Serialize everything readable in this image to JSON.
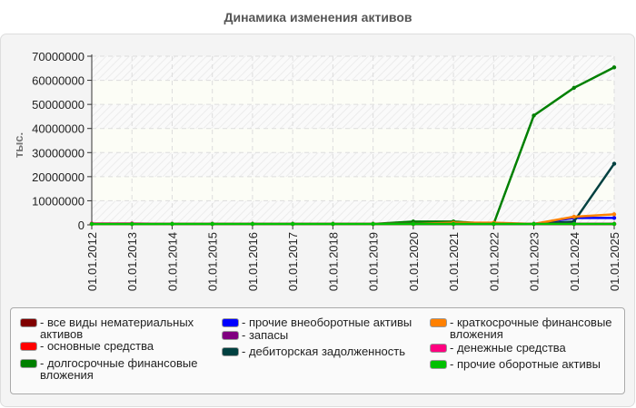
{
  "title": "Динамика изменения активов",
  "chart_data": {
    "type": "line",
    "title": "Динамика изменения активов",
    "xlabel": "",
    "ylabel": "тыс.",
    "ylim": [
      0,
      70000000
    ],
    "yticks": [
      "0",
      "10000000",
      "20000000",
      "30000000",
      "40000000",
      "50000000",
      "60000000",
      "70000000"
    ],
    "categories": [
      "01.01.2012",
      "01.01.2013",
      "01.01.2014",
      "01.01.2015",
      "01.01.2016",
      "01.01.2017",
      "01.01.2018",
      "01.01.2019",
      "01.01.2020",
      "01.01.2021",
      "01.01.2022",
      "01.01.2023",
      "01.01.2024",
      "01.01.2025"
    ],
    "grid": true,
    "legend_position": "bottom",
    "series": [
      {
        "name": "все виды нематериальных активов",
        "color": "#800000",
        "values": [
          0,
          0,
          0,
          0,
          0,
          0,
          0,
          0,
          0,
          0,
          0,
          0,
          0,
          0
        ]
      },
      {
        "name": "основные средства",
        "color": "#ff0000",
        "values": [
          0,
          0,
          0,
          0,
          0,
          0,
          0,
          0,
          0,
          0,
          0,
          0,
          0,
          0
        ]
      },
      {
        "name": "долгосрочные финансовые вложения",
        "color": "#008000",
        "values": [
          0,
          0,
          0,
          0,
          0,
          0,
          0,
          0,
          1000000,
          1000000,
          0,
          45000000,
          56500000,
          65000000
        ]
      },
      {
        "name": "прочие внеоборотные активы",
        "color": "#0000ff",
        "values": [
          0,
          0,
          0,
          0,
          0,
          0,
          0,
          0,
          0,
          0,
          0,
          0,
          2500000,
          2500000
        ]
      },
      {
        "name": "запасы",
        "color": "#800080",
        "values": [
          0,
          0,
          0,
          0,
          0,
          0,
          0,
          0,
          0,
          0,
          0,
          0,
          0,
          0
        ]
      },
      {
        "name": "дебиторская задолженность",
        "color": "#004040",
        "values": [
          0,
          0,
          0,
          0,
          0,
          0,
          0,
          0,
          0,
          0,
          0,
          0,
          1000000,
          25000000
        ]
      },
      {
        "name": "краткосрочные финансовые вложения",
        "color": "#ff8000",
        "values": [
          0,
          0,
          0,
          0,
          0,
          0,
          0,
          0,
          0,
          500000,
          500000,
          0,
          3000000,
          4000000
        ]
      },
      {
        "name": "денежные средства",
        "color": "#ff0080",
        "values": [
          200000,
          200000,
          0,
          0,
          0,
          0,
          0,
          0,
          0,
          0,
          0,
          0,
          0,
          0
        ]
      },
      {
        "name": "прочие оборотные активы",
        "color": "#00c000",
        "values": [
          0,
          0,
          0,
          0,
          0,
          0,
          0,
          0,
          0,
          0,
          0,
          0,
          0,
          0
        ]
      }
    ]
  },
  "legend": [
    {
      "label": "- все виды нематериальных активов",
      "color": "#800000"
    },
    {
      "label": "- основные средства",
      "color": "#ff0000"
    },
    {
      "label": "- долгосрочные финансовые вложения",
      "color": "#008000"
    },
    {
      "label": "- прочие внеоборотные активы",
      "color": "#0000ff"
    },
    {
      "label": "- запасы",
      "color": "#800080"
    },
    {
      "label": "- дебиторская задолженность",
      "color": "#004040"
    },
    {
      "label": "- краткосрочные финансовые вложения",
      "color": "#ff8000"
    },
    {
      "label": "- денежные средства",
      "color": "#ff0080"
    },
    {
      "label": "- прочие оборотные активы",
      "color": "#00c000"
    }
  ]
}
